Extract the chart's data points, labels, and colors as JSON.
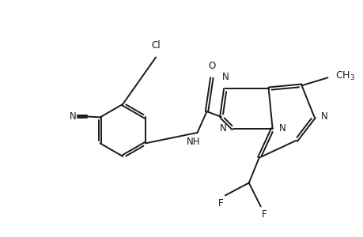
{
  "bg_color": "#ffffff",
  "line_color": "#1a1a1a",
  "line_width": 1.4,
  "figsize": [
    4.6,
    3.0
  ],
  "dpi": 100,
  "font_size": 8.5,
  "xlim": [
    0,
    10
  ],
  "ylim": [
    0,
    6.5
  ]
}
